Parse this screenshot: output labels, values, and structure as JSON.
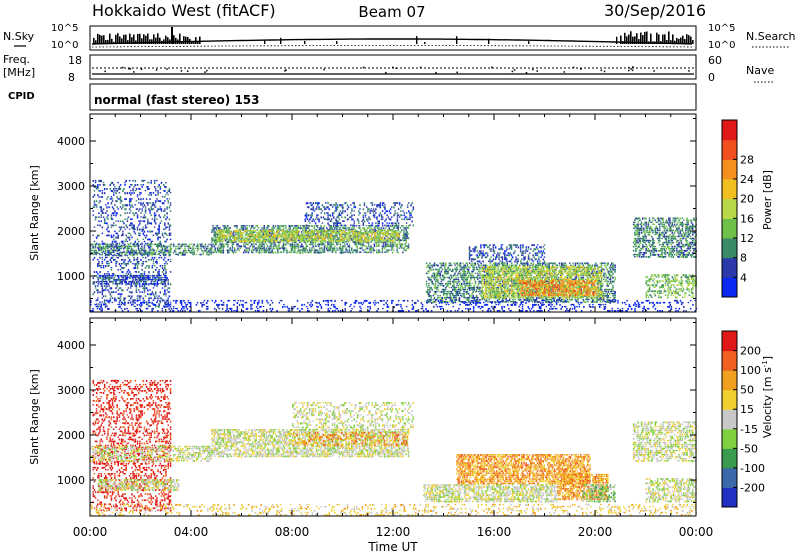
{
  "header": {
    "radar": "Hokkaido West (fitACF)",
    "beam": "Beam 07",
    "date": "30/Sep/2016"
  },
  "noise_panel": {
    "left_label": "N.Sky",
    "right_label": "N.Search",
    "left_ticks": [
      "10^5",
      "10^0"
    ],
    "right_ticks": [
      "10^5",
      "10^0"
    ]
  },
  "freq_panel": {
    "left_label_1": "Freq.",
    "left_label_2": "[MHz]",
    "right_label": "Nave",
    "left_ticks": [
      "18",
      "8"
    ],
    "right_ticks": [
      "60",
      "0"
    ]
  },
  "cpid_panel": {
    "label": "CPID",
    "text": "normal (fast stereo) 153"
  },
  "chart_data": [
    {
      "type": "heatmap",
      "name": "Power",
      "ylabel": "Slant Range [km]",
      "yticks": [
        "1000",
        "2000",
        "3000",
        "4000"
      ],
      "ylim": [
        200,
        4600
      ],
      "xlabel": "Time UT",
      "xticks": [
        "00:00",
        "04:00",
        "08:00",
        "12:00",
        "16:00",
        "20:00",
        "00:00"
      ],
      "xlim": [
        0,
        24
      ],
      "colorbar": {
        "label": "Power [dB]",
        "ticks": [
          "4",
          "8",
          "12",
          "16",
          "20",
          "24",
          "28"
        ],
        "colors": [
          "#0a28f0",
          "#2b3aa8",
          "#3a8a6a",
          "#6fc04a",
          "#b8d84a",
          "#f0c020",
          "#f59020",
          "#f05020",
          "#e01818"
        ]
      },
      "regions": [
        {
          "t0": 0.1,
          "t1": 3.2,
          "r0": 300,
          "r1": 3100,
          "level": 1,
          "density": 0.25
        },
        {
          "t0": 0.0,
          "t1": 4.8,
          "r0": 1450,
          "r1": 1700,
          "level": 2,
          "density": 0.55
        },
        {
          "t0": 0.3,
          "t1": 3.0,
          "r0": 800,
          "r1": 1000,
          "level": 1,
          "density": 0.6
        },
        {
          "t0": 4.8,
          "t1": 12.6,
          "r0": 1500,
          "r1": 2100,
          "level": 2,
          "density": 0.55
        },
        {
          "t0": 5.0,
          "t1": 12.2,
          "r0": 1750,
          "r1": 2000,
          "level": 4,
          "density": 0.6
        },
        {
          "t0": 8.5,
          "t1": 12.8,
          "r0": 2100,
          "r1": 2600,
          "level": 1,
          "density": 0.25
        },
        {
          "t0": 13.3,
          "t1": 20.8,
          "r0": 400,
          "r1": 1300,
          "level": 2,
          "density": 0.55
        },
        {
          "t0": 15.5,
          "t1": 20.3,
          "r0": 500,
          "r1": 1200,
          "level": 4,
          "density": 0.55
        },
        {
          "t0": 17.0,
          "t1": 20.0,
          "r0": 550,
          "r1": 900,
          "level": 6,
          "density": 0.6
        },
        {
          "t0": 15.0,
          "t1": 18.0,
          "r0": 1300,
          "r1": 1700,
          "level": 1,
          "density": 0.35
        },
        {
          "t0": 21.5,
          "t1": 24.0,
          "r0": 1400,
          "r1": 2300,
          "level": 2,
          "density": 0.5
        },
        {
          "t0": 22.0,
          "t1": 24.0,
          "r0": 500,
          "r1": 1000,
          "level": 3,
          "density": 0.45
        },
        {
          "t0": 0.0,
          "t1": 24.0,
          "r0": 200,
          "r1": 450,
          "level": 0,
          "density": 0.2
        }
      ]
    },
    {
      "type": "heatmap",
      "name": "Velocity",
      "ylabel": "Slant Range [km]",
      "yticks": [
        "1000",
        "2000",
        "3000",
        "4000"
      ],
      "ylim": [
        200,
        4600
      ],
      "xlabel": "Time UT",
      "xticks": [
        "00:00",
        "04:00",
        "08:00",
        "12:00",
        "16:00",
        "20:00",
        "00:00"
      ],
      "xlim": [
        0,
        24
      ],
      "colorbar": {
        "label": "Velocity [m s^-1]",
        "ticks": [
          "200",
          "100",
          "50",
          "15",
          "-15",
          "-50",
          "-100",
          "-200"
        ],
        "colors": [
          "#2030c0",
          "#3a68a8",
          "#3a9a50",
          "#80d040",
          "#c8c8c8",
          "#f0d030",
          "#f0a020",
          "#f06020",
          "#e01818"
        ]
      },
      "regions": [
        {
          "t0": 0.1,
          "t1": 3.2,
          "r0": 300,
          "r1": 3200,
          "level": 8,
          "density": 0.3
        },
        {
          "t0": 0.0,
          "t1": 4.8,
          "r0": 1400,
          "r1": 1750,
          "level": 4,
          "density": 0.5
        },
        {
          "t0": 0.3,
          "t1": 3.5,
          "r0": 750,
          "r1": 1000,
          "level": 4,
          "density": 0.6
        },
        {
          "t0": 4.8,
          "t1": 12.6,
          "r0": 1500,
          "r1": 2100,
          "level": 4,
          "density": 0.65
        },
        {
          "t0": 8.0,
          "t1": 12.6,
          "r0": 1750,
          "r1": 2050,
          "level": 6,
          "density": 0.35
        },
        {
          "t0": 8.0,
          "t1": 12.8,
          "r0": 2100,
          "r1": 2700,
          "level": 4,
          "density": 0.3
        },
        {
          "t0": 14.5,
          "t1": 19.8,
          "r0": 900,
          "r1": 1550,
          "level": 6,
          "density": 0.7
        },
        {
          "t0": 13.2,
          "t1": 18.5,
          "r0": 500,
          "r1": 900,
          "level": 4,
          "density": 0.6
        },
        {
          "t0": 18.5,
          "t1": 20.5,
          "r0": 550,
          "r1": 1100,
          "level": 6,
          "density": 0.7
        },
        {
          "t0": 19.5,
          "t1": 20.8,
          "r0": 500,
          "r1": 900,
          "level": 3,
          "density": 0.5
        },
        {
          "t0": 21.5,
          "t1": 24.0,
          "r0": 1400,
          "r1": 2300,
          "level": 4,
          "density": 0.5
        },
        {
          "t0": 22.0,
          "t1": 24.0,
          "r0": 500,
          "r1": 1000,
          "level": 4,
          "density": 0.5
        },
        {
          "t0": 0.0,
          "t1": 24.0,
          "r0": 200,
          "r1": 450,
          "level": 5,
          "density": 0.2
        }
      ]
    }
  ]
}
